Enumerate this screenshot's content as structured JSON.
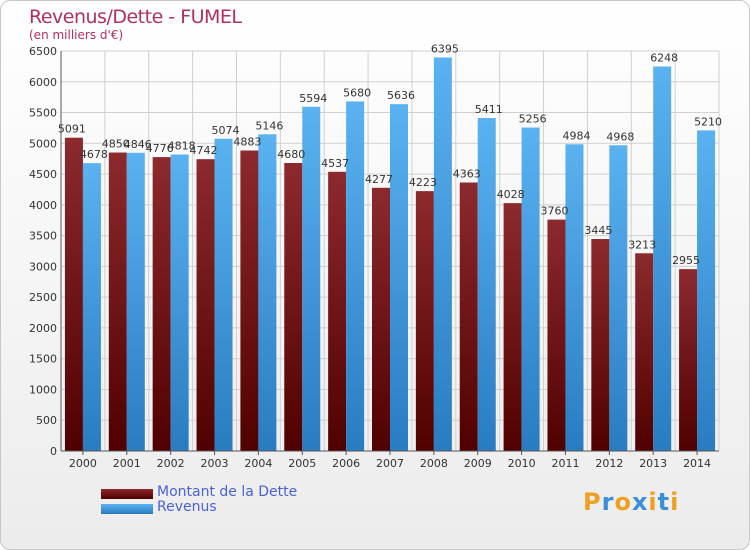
{
  "header": {
    "title": "Revenus/Dette - FUMEL",
    "subtitle": "(en milliers d'€)"
  },
  "legend": {
    "items": [
      {
        "label": "Montant de la Dette",
        "color": "#7a1a1e"
      },
      {
        "label": "Revenus",
        "color": "#4aa3e6"
      }
    ]
  },
  "logo": {
    "letters": [
      "P",
      "r",
      "o",
      "x",
      "i",
      "t",
      "i"
    ],
    "colors": [
      "#f0a020",
      "#3a8fd8",
      "#f0a020",
      "#3a8fd8",
      "#f0a020",
      "#3a8fd8",
      "#f0a020"
    ]
  },
  "chart_data": {
    "type": "bar",
    "categories": [
      "2000",
      "2001",
      "2002",
      "2003",
      "2004",
      "2005",
      "2006",
      "2007",
      "2008",
      "2009",
      "2010",
      "2011",
      "2012",
      "2013",
      "2014"
    ],
    "series": [
      {
        "name": "Montant de la Dette",
        "values": [
          5091,
          4850,
          4776,
          4742,
          4883,
          4680,
          4537,
          4277,
          4223,
          4363,
          4028,
          3760,
          3445,
          3213,
          2955
        ],
        "labels": [
          "5091",
          "4850",
          "4776",
          "4742",
          "4883",
          "4680",
          "4537",
          "4277",
          "4223",
          "4363",
          "4028",
          "3760",
          "3445",
          "3213",
          "2955"
        ],
        "color": "#7a1a1e"
      },
      {
        "name": "Revenus",
        "values": [
          4678,
          4846,
          4818,
          5074,
          5146,
          5594,
          5680,
          5636,
          6395,
          5411,
          5256,
          4984,
          4968,
          6248,
          5210
        ],
        "labels": [
          "4678",
          "4846",
          "4818",
          "5074",
          "5146",
          "5594",
          "5680",
          "5636",
          "6395",
          "5411",
          "5256",
          "4984",
          "4968",
          "6248",
          "5210"
        ],
        "color": "#4aa3e6"
      }
    ],
    "ylim": [
      0,
      6500
    ],
    "yticks": [
      0,
      500,
      1000,
      1500,
      2000,
      2500,
      3000,
      3500,
      4000,
      4500,
      5000,
      5500,
      6000,
      6500
    ],
    "grid": true,
    "legend_position": "bottom-left"
  }
}
